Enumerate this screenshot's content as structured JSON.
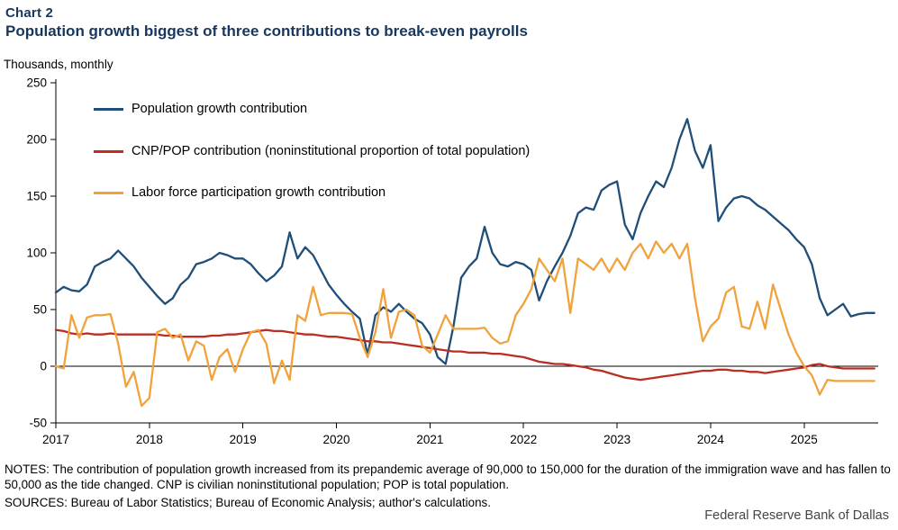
{
  "header": {
    "chart_label": "Chart 2",
    "title": "Population growth biggest of three contributions to break-even payrolls"
  },
  "footer": {
    "notes": "NOTES: The contribution of population growth increased from its prepandemic average of 90,000 to 150,000 for the duration of the immigration wave and has fallen to 50,000 as the tide changed. CNP is civilian noninstitutional population; POP is total population.",
    "sources": "SOURCES: Bureau of Labor Statistics; Bureau of Economic Analysis; author's calculations.",
    "organization": "Federal Reserve Bank of Dallas"
  },
  "chart_data": {
    "type": "line",
    "title": "Population growth biggest of three contributions to break-even payrolls",
    "ylabel": "Thousands,  monthly",
    "xlabel": "",
    "ylim": [
      -50,
      250
    ],
    "y_ticks": [
      -50,
      0,
      50,
      100,
      150,
      200,
      250
    ],
    "x_ticks": [
      "2017",
      "2018",
      "2019",
      "2020",
      "2021",
      "2022",
      "2023",
      "2024",
      "2025"
    ],
    "x_start": "2017-01",
    "x_step_months": 1,
    "grid": "zero-line only, no other gridlines",
    "legend_position": "top-left inside plot",
    "series": [
      {
        "name": "Population growth contribution",
        "color": "#1f4e79",
        "values": [
          65,
          70,
          67,
          66,
          72,
          88,
          92,
          95,
          102,
          95,
          88,
          78,
          70,
          62,
          55,
          60,
          72,
          78,
          90,
          92,
          95,
          100,
          98,
          95,
          95,
          90,
          82,
          75,
          80,
          88,
          118,
          95,
          105,
          98,
          85,
          72,
          63,
          55,
          48,
          42,
          10,
          45,
          52,
          48,
          55,
          48,
          42,
          38,
          28,
          8,
          2,
          35,
          78,
          88,
          95,
          123,
          100,
          90,
          88,
          92,
          90,
          85,
          58,
          75,
          88,
          100,
          115,
          135,
          140,
          138,
          155,
          160,
          163,
          125,
          112,
          135,
          150,
          163,
          158,
          175,
          200,
          218,
          190,
          175,
          195,
          128,
          140,
          148,
          150,
          148,
          142,
          138,
          132,
          126,
          120,
          112,
          105,
          90,
          60,
          45,
          50,
          55,
          44,
          46,
          47,
          47
        ]
      },
      {
        "name": "CNP/POP contribution (noninstitutional proportion of total population)",
        "color": "#bc2d22",
        "values": [
          32,
          31,
          29,
          28,
          29,
          28,
          28,
          29,
          28,
          28,
          28,
          28,
          28,
          28,
          27,
          27,
          26,
          26,
          26,
          26,
          27,
          27,
          28,
          28,
          29,
          30,
          31,
          32,
          31,
          31,
          30,
          29,
          28,
          28,
          27,
          26,
          26,
          25,
          24,
          23,
          22,
          22,
          21,
          21,
          20,
          19,
          18,
          17,
          16,
          15,
          14,
          13,
          13,
          12,
          12,
          12,
          11,
          11,
          10,
          9,
          8,
          6,
          4,
          3,
          2,
          2,
          1,
          0,
          -1,
          -3,
          -4,
          -6,
          -8,
          -10,
          -11,
          -12,
          -11,
          -10,
          -9,
          -8,
          -7,
          -6,
          -5,
          -4,
          -4,
          -3,
          -3,
          -4,
          -4,
          -5,
          -5,
          -6,
          -5,
          -4,
          -3,
          -2,
          -1,
          1,
          2,
          0,
          -1,
          -2,
          -2,
          -2,
          -2,
          -2
        ]
      },
      {
        "name": "Labor force participation growth contribution",
        "color": "#f0a23c",
        "values": [
          0,
          -2,
          45,
          25,
          43,
          45,
          45,
          46,
          20,
          -18,
          -5,
          -35,
          -28,
          30,
          33,
          25,
          28,
          5,
          22,
          18,
          -12,
          8,
          15,
          -5,
          15,
          30,
          32,
          20,
          -15,
          5,
          -12,
          45,
          40,
          70,
          45,
          47,
          47,
          47,
          46,
          25,
          8,
          30,
          68,
          25,
          48,
          50,
          45,
          18,
          12,
          28,
          45,
          33,
          33,
          33,
          33,
          34,
          25,
          20,
          22,
          45,
          55,
          68,
          95,
          85,
          75,
          95,
          47,
          95,
          90,
          85,
          95,
          83,
          95,
          85,
          100,
          108,
          95,
          110,
          100,
          108,
          95,
          108,
          60,
          22,
          35,
          42,
          65,
          70,
          35,
          33,
          57,
          33,
          72,
          50,
          28,
          12,
          0,
          -8,
          -25,
          -12,
          -13,
          -13,
          -13,
          -13,
          -13,
          -13
        ]
      }
    ]
  }
}
